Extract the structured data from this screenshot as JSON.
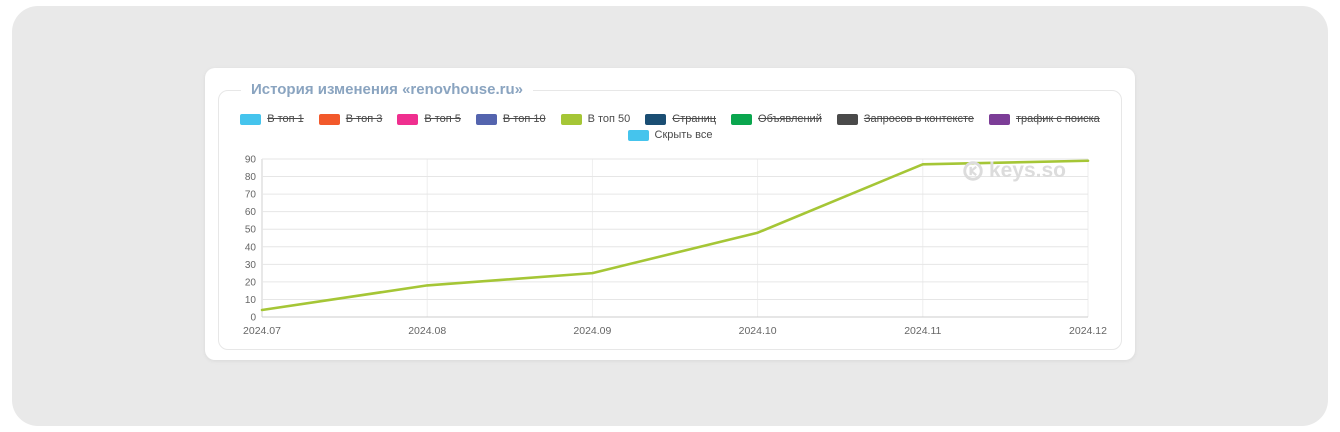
{
  "panel": {
    "title": "История изменения «renovhouse.ru»"
  },
  "legend": {
    "items": [
      {
        "label": "В топ 1",
        "color": "#45c4ed",
        "struck": true
      },
      {
        "label": "В топ 3",
        "color": "#f2592b",
        "struck": true
      },
      {
        "label": "В топ 5",
        "color": "#ef2f8f",
        "struck": true
      },
      {
        "label": "В топ 10",
        "color": "#5464ae",
        "struck": true
      },
      {
        "label": "В топ 50",
        "color": "#a5c636",
        "struck": false
      },
      {
        "label": "Страниц",
        "color": "#1a4e73",
        "struck": true
      },
      {
        "label": "Объявлений",
        "color": "#0aa64e",
        "struck": true
      },
      {
        "label": "Запросов в контексте",
        "color": "#4a4a4a",
        "struck": true
      },
      {
        "label": "трафик с поиска",
        "color": "#7c3d97",
        "struck": true
      }
    ],
    "hide_all": {
      "label": "Скрыть все",
      "color": "#45c4ed",
      "struck": false
    }
  },
  "watermark": "keys.so",
  "chart_data": {
    "type": "line",
    "categories": [
      "2024.07",
      "2024.08",
      "2024.09",
      "2024.10",
      "2024.11",
      "2024.12"
    ],
    "series": [
      {
        "name": "В топ 50",
        "color": "#a5c636",
        "values": [
          4,
          18,
          25,
          48,
          87,
          89
        ]
      }
    ],
    "title": "История изменения «renovhouse.ru»",
    "xlabel": "",
    "ylabel": "",
    "ylim": [
      0,
      90
    ],
    "ytick_step": 10,
    "grid": true,
    "legend_position": "top"
  }
}
